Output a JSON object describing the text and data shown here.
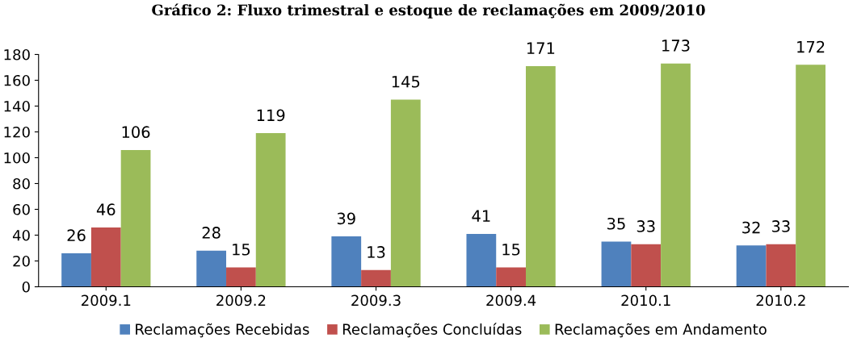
{
  "chart_data": {
    "type": "bar",
    "title": "Gráfico 2: Fluxo trimestral e estoque de reclamações em 2009/2010",
    "categories": [
      "2009.1",
      "2009.2",
      "2009.3",
      "2009.4",
      "2010.1",
      "2010.2"
    ],
    "series": [
      {
        "name": "Reclamações Recebidas",
        "color": "#4f81bd",
        "values": [
          26,
          28,
          39,
          41,
          35,
          32
        ]
      },
      {
        "name": "Reclamações Concluídas",
        "color": "#c0504d",
        "values": [
          46,
          15,
          13,
          15,
          33,
          33
        ]
      },
      {
        "name": "Reclamações em Andamento",
        "color": "#9bbb59",
        "values": [
          106,
          119,
          145,
          171,
          173,
          172
        ]
      }
    ],
    "ylim": [
      0,
      180
    ],
    "yticks": [
      0,
      20,
      40,
      60,
      80,
      100,
      120,
      140,
      160,
      180
    ],
    "data_labels": true,
    "grid": false,
    "legend": "bottom"
  }
}
